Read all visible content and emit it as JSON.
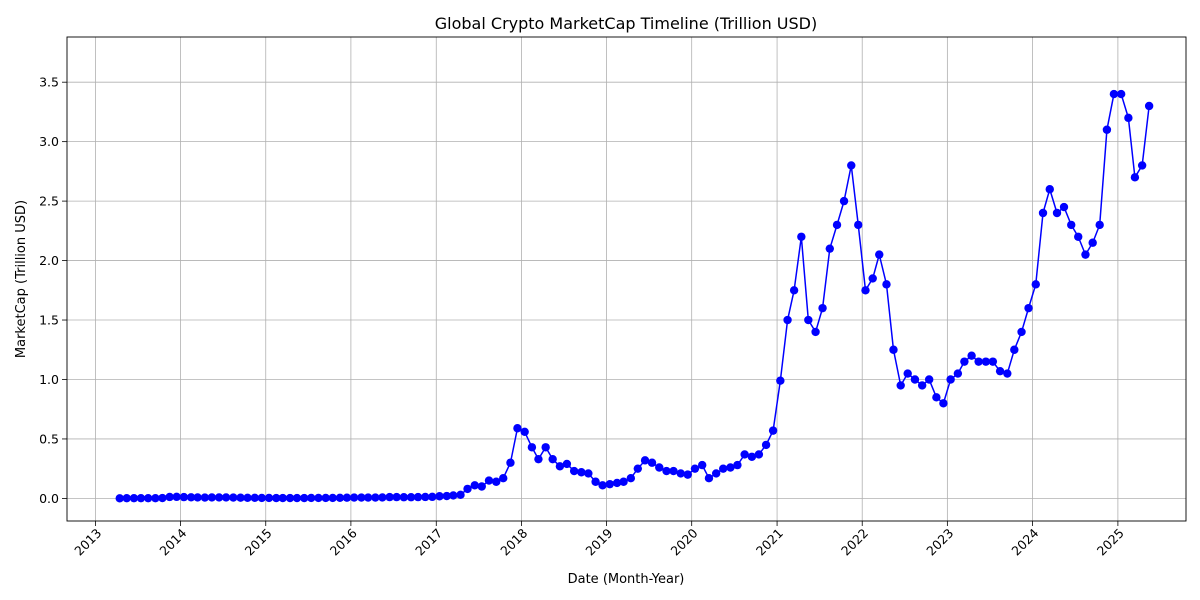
{
  "chart_data": {
    "type": "line",
    "title": "Global Crypto MarketCap Timeline (Trillion USD)",
    "xlabel": "Date (Month-Year)",
    "ylabel": "MarketCap (Trillion USD)",
    "series_color": "#0000ff",
    "grid": true,
    "xlim": [
      "2012-09-01",
      "2025-10-20"
    ],
    "ylim": [
      -0.19,
      3.88
    ],
    "xticks": [
      "2013",
      "2014",
      "2015",
      "2016",
      "2017",
      "2018",
      "2019",
      "2020",
      "2021",
      "2022",
      "2023",
      "2024",
      "2025"
    ],
    "yticks": [
      "0.0",
      "0.5",
      "1.0",
      "1.5",
      "2.0",
      "2.5",
      "3.0",
      "3.5"
    ],
    "series": [
      {
        "x": [
          "2013-04",
          "2013-05",
          "2013-06",
          "2013-07",
          "2013-08",
          "2013-09",
          "2013-10",
          "2013-11",
          "2013-12",
          "2014-01",
          "2014-02",
          "2014-03",
          "2014-04",
          "2014-05",
          "2014-06",
          "2014-07",
          "2014-08",
          "2014-09",
          "2014-10",
          "2014-11",
          "2014-12",
          "2015-01",
          "2015-02",
          "2015-03",
          "2015-04",
          "2015-05",
          "2015-06",
          "2015-07",
          "2015-08",
          "2015-09",
          "2015-10",
          "2015-11",
          "2015-12",
          "2016-01",
          "2016-02",
          "2016-03",
          "2016-04",
          "2016-05",
          "2016-06",
          "2016-07",
          "2016-08",
          "2016-09",
          "2016-10",
          "2016-11",
          "2016-12",
          "2017-01",
          "2017-02",
          "2017-03",
          "2017-04",
          "2017-05",
          "2017-06",
          "2017-07",
          "2017-08",
          "2017-09",
          "2017-10",
          "2017-11",
          "2017-12",
          "2018-01",
          "2018-02",
          "2018-03",
          "2018-04",
          "2018-05",
          "2018-06",
          "2018-07",
          "2018-08",
          "2018-09",
          "2018-10",
          "2018-11",
          "2018-12",
          "2019-01",
          "2019-02",
          "2019-03",
          "2019-04",
          "2019-05",
          "2019-06",
          "2019-07",
          "2019-08",
          "2019-09",
          "2019-10",
          "2019-11",
          "2019-12",
          "2020-01",
          "2020-02",
          "2020-03",
          "2020-04",
          "2020-05",
          "2020-06",
          "2020-07",
          "2020-08",
          "2020-09",
          "2020-10",
          "2020-11",
          "2020-12",
          "2021-01",
          "2021-02",
          "2021-03",
          "2021-04",
          "2021-05",
          "2021-06",
          "2021-07",
          "2021-08",
          "2021-09",
          "2021-10",
          "2021-11",
          "2021-12",
          "2022-01",
          "2022-02",
          "2022-03",
          "2022-04",
          "2022-05",
          "2022-06",
          "2022-07",
          "2022-08",
          "2022-09",
          "2022-10",
          "2022-11",
          "2022-12",
          "2023-01",
          "2023-02",
          "2023-03",
          "2023-04",
          "2023-05",
          "2023-06",
          "2023-07",
          "2023-08",
          "2023-09",
          "2023-10",
          "2023-11",
          "2023-12",
          "2024-01",
          "2024-02",
          "2024-03",
          "2024-04",
          "2024-05",
          "2024-06",
          "2024-07",
          "2024-08",
          "2024-09",
          "2024-10",
          "2024-11",
          "2024-12",
          "2025-01",
          "2025-02",
          "2025-03",
          "2025-04",
          "2025-05"
        ],
        "y": [
          0.001,
          0.002,
          0.002,
          0.002,
          0.002,
          0.002,
          0.003,
          0.012,
          0.013,
          0.011,
          0.009,
          0.008,
          0.007,
          0.008,
          0.008,
          0.008,
          0.007,
          0.006,
          0.005,
          0.005,
          0.004,
          0.004,
          0.003,
          0.003,
          0.003,
          0.003,
          0.003,
          0.004,
          0.004,
          0.004,
          0.004,
          0.005,
          0.006,
          0.007,
          0.007,
          0.007,
          0.007,
          0.008,
          0.011,
          0.011,
          0.01,
          0.01,
          0.011,
          0.012,
          0.013,
          0.018,
          0.02,
          0.025,
          0.03,
          0.08,
          0.11,
          0.1,
          0.15,
          0.14,
          0.17,
          0.3,
          0.59,
          0.56,
          0.43,
          0.33,
          0.43,
          0.33,
          0.27,
          0.29,
          0.23,
          0.22,
          0.21,
          0.14,
          0.11,
          0.12,
          0.13,
          0.14,
          0.17,
          0.25,
          0.32,
          0.3,
          0.26,
          0.23,
          0.23,
          0.21,
          0.2,
          0.25,
          0.28,
          0.17,
          0.21,
          0.25,
          0.26,
          0.28,
          0.37,
          0.35,
          0.37,
          0.45,
          0.57,
          0.99,
          1.5,
          1.75,
          2.2,
          1.5,
          1.4,
          1.6,
          2.1,
          2.3,
          2.5,
          2.8,
          2.3,
          1.75,
          1.85,
          2.05,
          1.8,
          1.25,
          0.95,
          1.05,
          1.0,
          0.95,
          1.0,
          0.85,
          0.8,
          1.0,
          1.05,
          1.15,
          1.2,
          1.15,
          1.15,
          1.15,
          1.07,
          1.05,
          1.25,
          1.4,
          1.6,
          1.8,
          2.4,
          2.6,
          2.4,
          2.45,
          2.3,
          2.2,
          2.05,
          2.15,
          2.3,
          3.1,
          3.4,
          3.4,
          3.2,
          2.7,
          2.8,
          3.3
        ]
      }
    ]
  }
}
